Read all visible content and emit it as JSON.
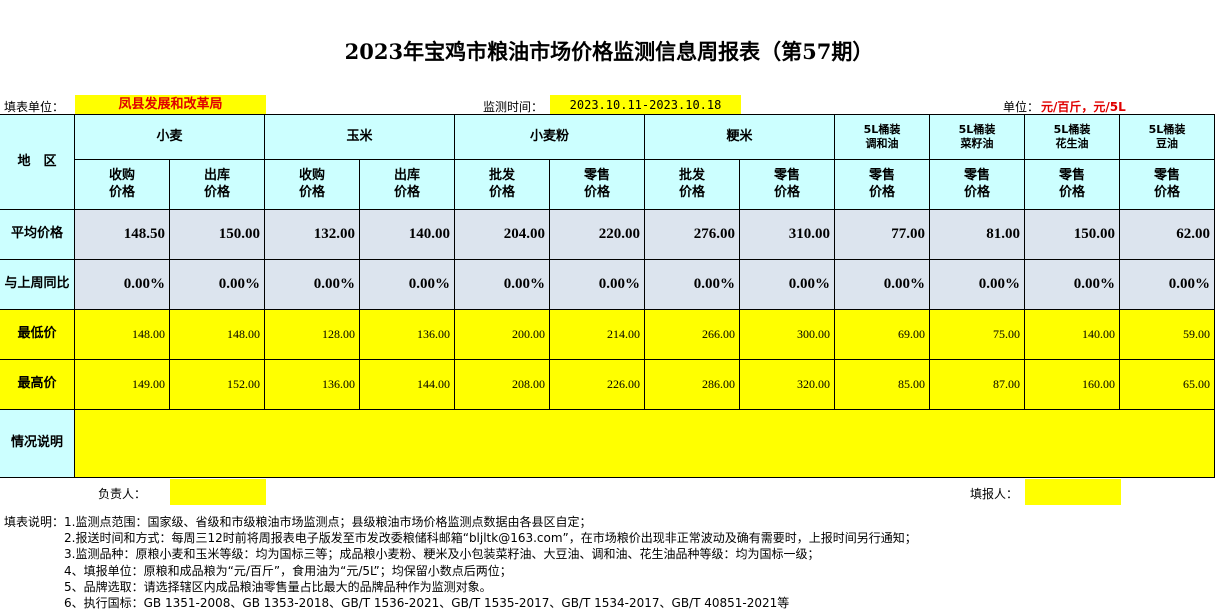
{
  "title": "2023年宝鸡市粮油市场价格监测信息周报表（第57期）",
  "info": {
    "unit_label": "填表单位：",
    "unit": "凤县发展和改革局",
    "period_label": "监测时间：",
    "period": "2023.10.11-2023.10.18",
    "measure_label": "单位：",
    "measure": "元/百斤，元/5L"
  },
  "table": {
    "region_header": "地　区",
    "groups": [
      "小麦",
      "玉米",
      "小麦粉",
      "粳米",
      "5L桶装\n调和油",
      "5L桶装\n菜籽油",
      "5L桶装\n花生油",
      "5L桶装\n豆油"
    ],
    "subheaders": [
      "收购\n价格",
      "出库\n价格",
      "收购\n价格",
      "出库\n价格",
      "批发\n价格",
      "零售\n价格",
      "批发\n价格",
      "零售\n价格",
      "零售\n价格",
      "零售\n价格",
      "零售\n价格",
      "零售\n价格"
    ],
    "rows": [
      {
        "label": "平均价格",
        "values": [
          "148.50",
          "150.00",
          "132.00",
          "140.00",
          "204.00",
          "220.00",
          "276.00",
          "310.00",
          "77.00",
          "81.00",
          "150.00",
          "62.00"
        ]
      },
      {
        "label": "与上周同比",
        "values": [
          "0.00%",
          "0.00%",
          "0.00%",
          "0.00%",
          "0.00%",
          "0.00%",
          "0.00%",
          "0.00%",
          "0.00%",
          "0.00%",
          "0.00%",
          "0.00%"
        ]
      },
      {
        "label": "最低价",
        "values": [
          "148.00",
          "148.00",
          "128.00",
          "136.00",
          "200.00",
          "214.00",
          "266.00",
          "300.00",
          "69.00",
          "75.00",
          "140.00",
          "59.00"
        ]
      },
      {
        "label": "最高价",
        "values": [
          "149.00",
          "152.00",
          "136.00",
          "144.00",
          "208.00",
          "226.00",
          "286.00",
          "320.00",
          "85.00",
          "87.00",
          "160.00",
          "65.00"
        ]
      }
    ],
    "remark_label": "情况说明",
    "responsible_label": "负责人：",
    "filler_label": "填报人："
  },
  "notes": {
    "label": "填表说明：",
    "items": [
      "1.监测点范围：国家级、省级和市级粮油市场监测点；县级粮油市场价格监测点数据由各县区自定；",
      "2.报送时间和方式：每周三12时前将周报表电子版发至市发改委粮储科邮箱“bljltk@163.com”，在市场粮价出现非正常波动及确有需要时，上报时间另行通知；",
      "3.监测品种：原粮小麦和玉米等级：均为国标三等；成品粮小麦粉、粳米及小包装菜籽油、大豆油、调和油、花生油品种等级：均为国标一级；",
      "4、填报单位：原粮和成品粮为“元/百斤”，食用油为“元/5L”；均保留小数点后两位；",
      "5、品牌选取：请选择辖区内成品粮油零售量占比最大的品牌品种作为监测对象。",
      "6、执行国标：GB 1351-2008、GB 1353-2018、GB/T 1536-2021、GB/T 1535-2017、GB/T 1534-2017、GB/T 40851-2021等"
    ]
  }
}
